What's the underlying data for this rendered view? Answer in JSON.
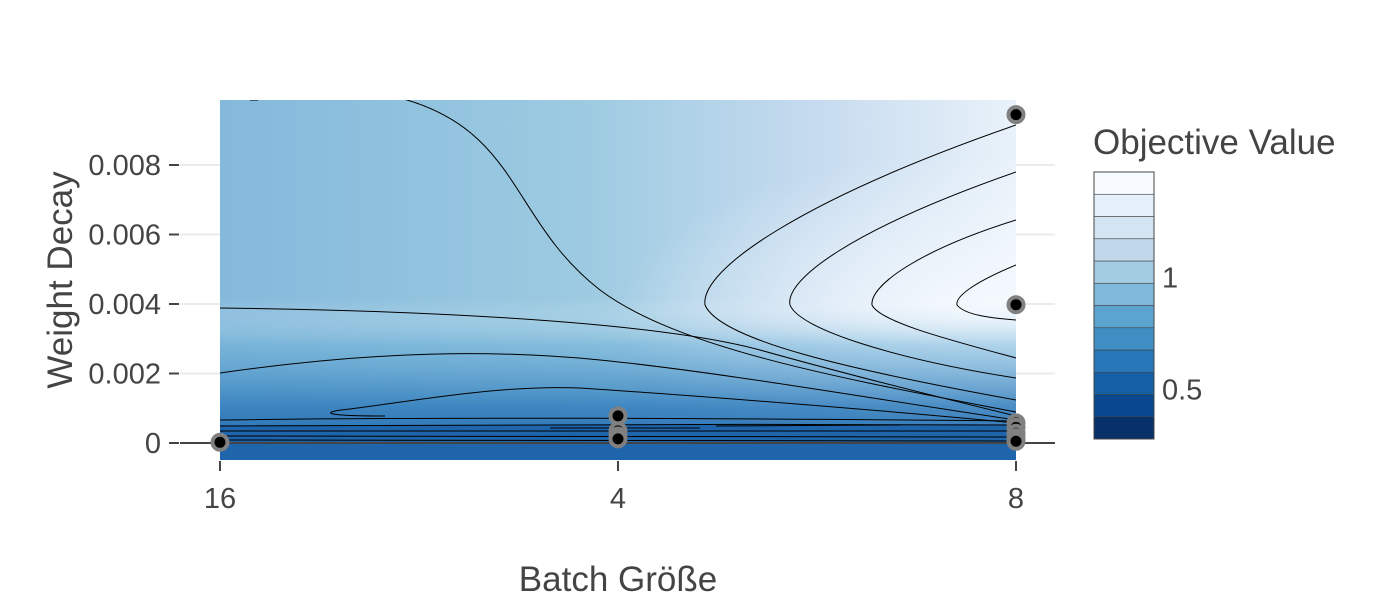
{
  "chart_data": {
    "type": "contour",
    "xlabel": "Batch Größe",
    "ylabel": "Weight Decay",
    "x_categories": [
      "16",
      "4",
      "8"
    ],
    "y_ticks": [
      {
        "value": 0,
        "label": "0"
      },
      {
        "value": 0.002,
        "label": "0.002"
      },
      {
        "value": 0.004,
        "label": "0.004"
      },
      {
        "value": 0.006,
        "label": "0.006"
      },
      {
        "value": 0.008,
        "label": "0.008"
      }
    ],
    "ylim": [
      -0.00048,
      0.0099
    ],
    "colorbar": {
      "title": "Objective Value",
      "range": [
        0.28,
        1.47
      ],
      "ticks": [
        {
          "value": 0.5,
          "label": "0.5"
        },
        {
          "value": 1,
          "label": "1"
        }
      ],
      "colorscale": "Blues",
      "levels": 12
    },
    "points": [
      {
        "x": "16",
        "y": 2e-05
      },
      {
        "x": "4",
        "y": 0.00078
      },
      {
        "x": "4",
        "y": 0.00035
      },
      {
        "x": "4",
        "y": 0.0002
      },
      {
        "x": "4",
        "y": 0.00012
      },
      {
        "x": "8",
        "y": 0.00945
      },
      {
        "x": "8",
        "y": 0.00398
      },
      {
        "x": "8",
        "y": 0.00058
      },
      {
        "x": "8",
        "y": 0.00045
      },
      {
        "x": "8",
        "y": 0.00028
      },
      {
        "x": "8",
        "y": 0.00015
      },
      {
        "x": "8",
        "y": 5e-05
      }
    ]
  }
}
